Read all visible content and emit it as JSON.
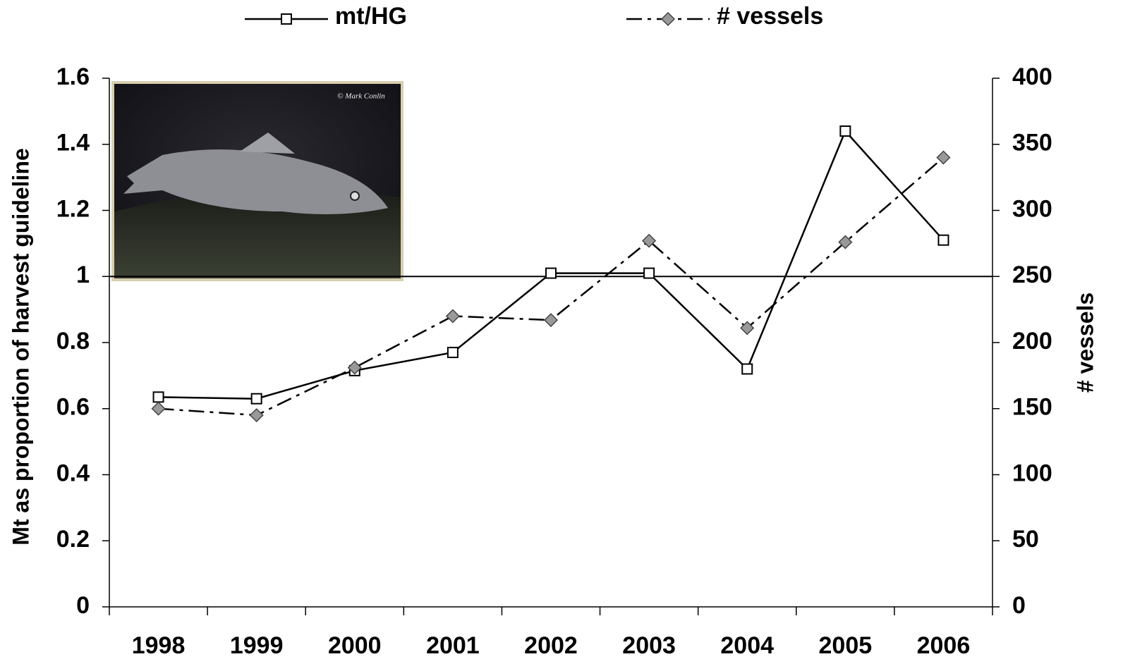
{
  "chart_data": {
    "type": "line",
    "categories": [
      "1998",
      "1999",
      "2000",
      "2001",
      "2002",
      "2003",
      "2004",
      "2005",
      "2006"
    ],
    "series": [
      {
        "name": "mt/HG",
        "color": "#000000",
        "marker": "square",
        "line_style": "solid",
        "values": [
          0.635,
          0.63,
          0.715,
          0.77,
          1.01,
          1.01,
          0.72,
          1.44,
          1.11
        ]
      },
      {
        "name": "# vessels",
        "color": "#000000",
        "marker": "diamond",
        "line_style": "dash-dot",
        "axis": "y2",
        "values": [
          150,
          145,
          181,
          220,
          217,
          277,
          211,
          276,
          340
        ]
      }
    ],
    "ylabel": "Mt as proportion of harvest guideline",
    "y2label": "# vessels",
    "ylim": [
      0,
      1.6
    ],
    "yticks": [
      0,
      0.2,
      0.4,
      0.6,
      0.8,
      1,
      1.2,
      1.4,
      1.6
    ],
    "y2lim": [
      0,
      400
    ],
    "y2ticks": [
      0,
      50,
      100,
      150,
      200,
      250,
      300,
      350,
      400
    ],
    "hline": 1,
    "image_credit": "© Mark Conlin"
  }
}
